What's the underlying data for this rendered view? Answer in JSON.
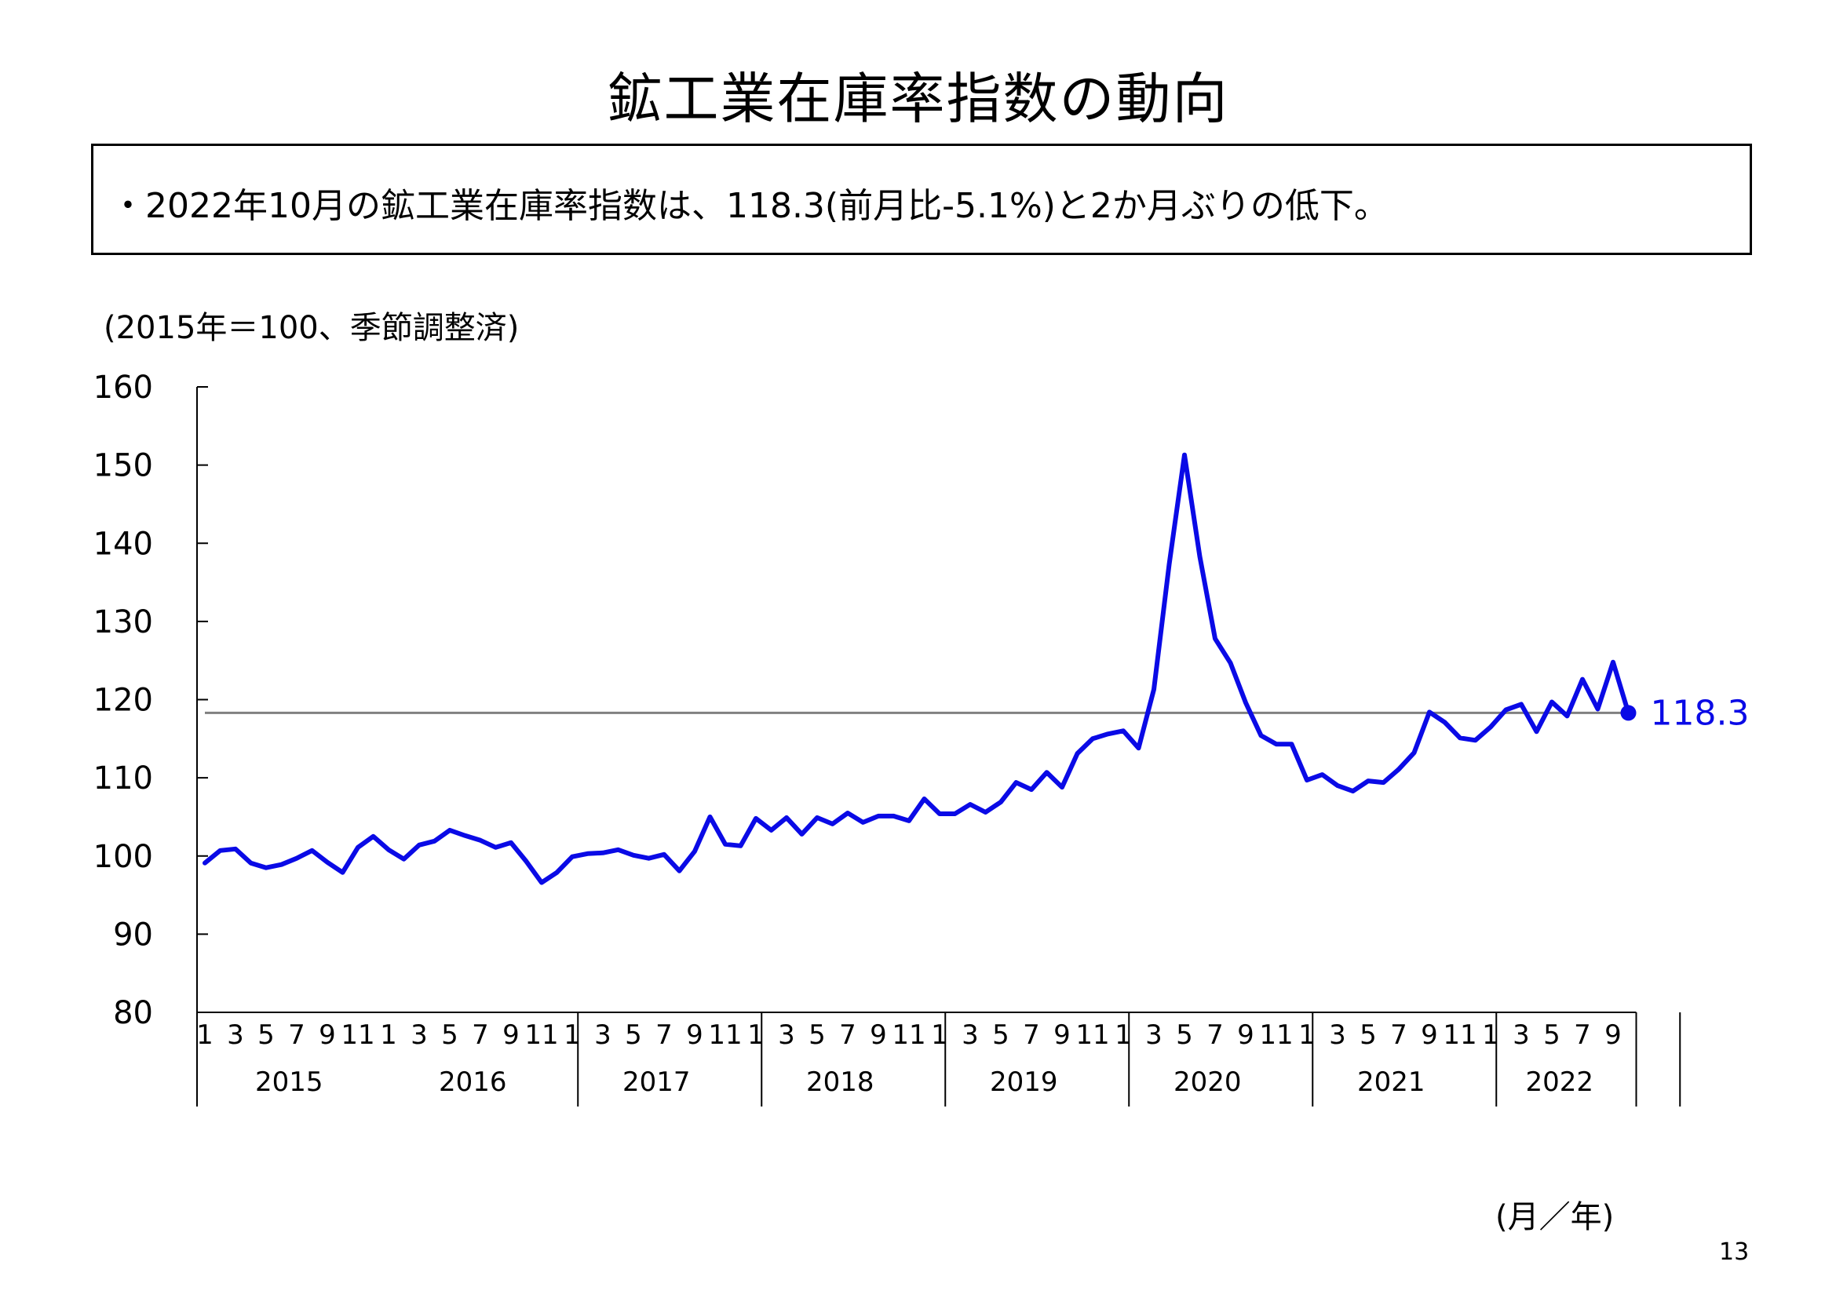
{
  "title": "鉱工業在庫率指数の動向",
  "summary": "・2022年10月の鉱工業在庫率指数は、118.3(前月比-5.1%)と2か月ぶりの低下。",
  "unit_note": "(2015年＝100、季節調整済)",
  "page_number": "13",
  "chart_data": {
    "type": "line",
    "title": "",
    "xlabel": "(月／年)",
    "ylabel": "",
    "ylim": [
      80,
      160
    ],
    "yticks": [
      "80",
      "90",
      "100",
      "110",
      "120",
      "130",
      "140",
      "150",
      "160"
    ],
    "years": [
      "2015",
      "2016",
      "2017",
      "2018",
      "2019",
      "2020",
      "2021",
      "2022"
    ],
    "month_tick_labels": [
      "1",
      "3",
      "5",
      "7",
      "9",
      "11"
    ],
    "month_tick_labels_2022": [
      "1",
      "3",
      "5",
      "7",
      "9"
    ],
    "x_start": "2015-01",
    "x_end": "2022-10",
    "grid": false,
    "reference_line": {
      "value": 118.3,
      "color": "#808080"
    },
    "last_point_label": "118.3",
    "series": [
      {
        "color": "#0a0ae6",
        "values": [
          99.1,
          100.7,
          100.9,
          99.1,
          98.5,
          98.9,
          99.7,
          100.7,
          99.2,
          97.9,
          101.1,
          102.5,
          100.8,
          99.6,
          101.4,
          101.9,
          103.3,
          102.6,
          102.0,
          101.1,
          101.7,
          99.3,
          96.6,
          97.9,
          99.9,
          100.3,
          100.4,
          100.8,
          100.1,
          99.7,
          100.2,
          98.1,
          100.6,
          105.0,
          101.5,
          101.3,
          104.8,
          103.3,
          104.9,
          102.8,
          104.9,
          104.1,
          105.5,
          104.3,
          105.1,
          105.1,
          104.5,
          107.3,
          105.4,
          105.4,
          106.6,
          105.6,
          106.9,
          109.4,
          108.5,
          110.7,
          108.8,
          113.1,
          115.0,
          115.6,
          116.0,
          113.8,
          121.3,
          137.3,
          151.3,
          138.3,
          127.8,
          124.7,
          119.6,
          115.4,
          114.3,
          114.3,
          109.7,
          110.4,
          109.0,
          108.3,
          109.6,
          109.4,
          111.1,
          113.2,
          118.4,
          117.1,
          115.1,
          114.8,
          116.5,
          118.7,
          119.4,
          115.9,
          119.7,
          117.9,
          122.6,
          118.8,
          124.8,
          118.3
        ]
      }
    ]
  }
}
